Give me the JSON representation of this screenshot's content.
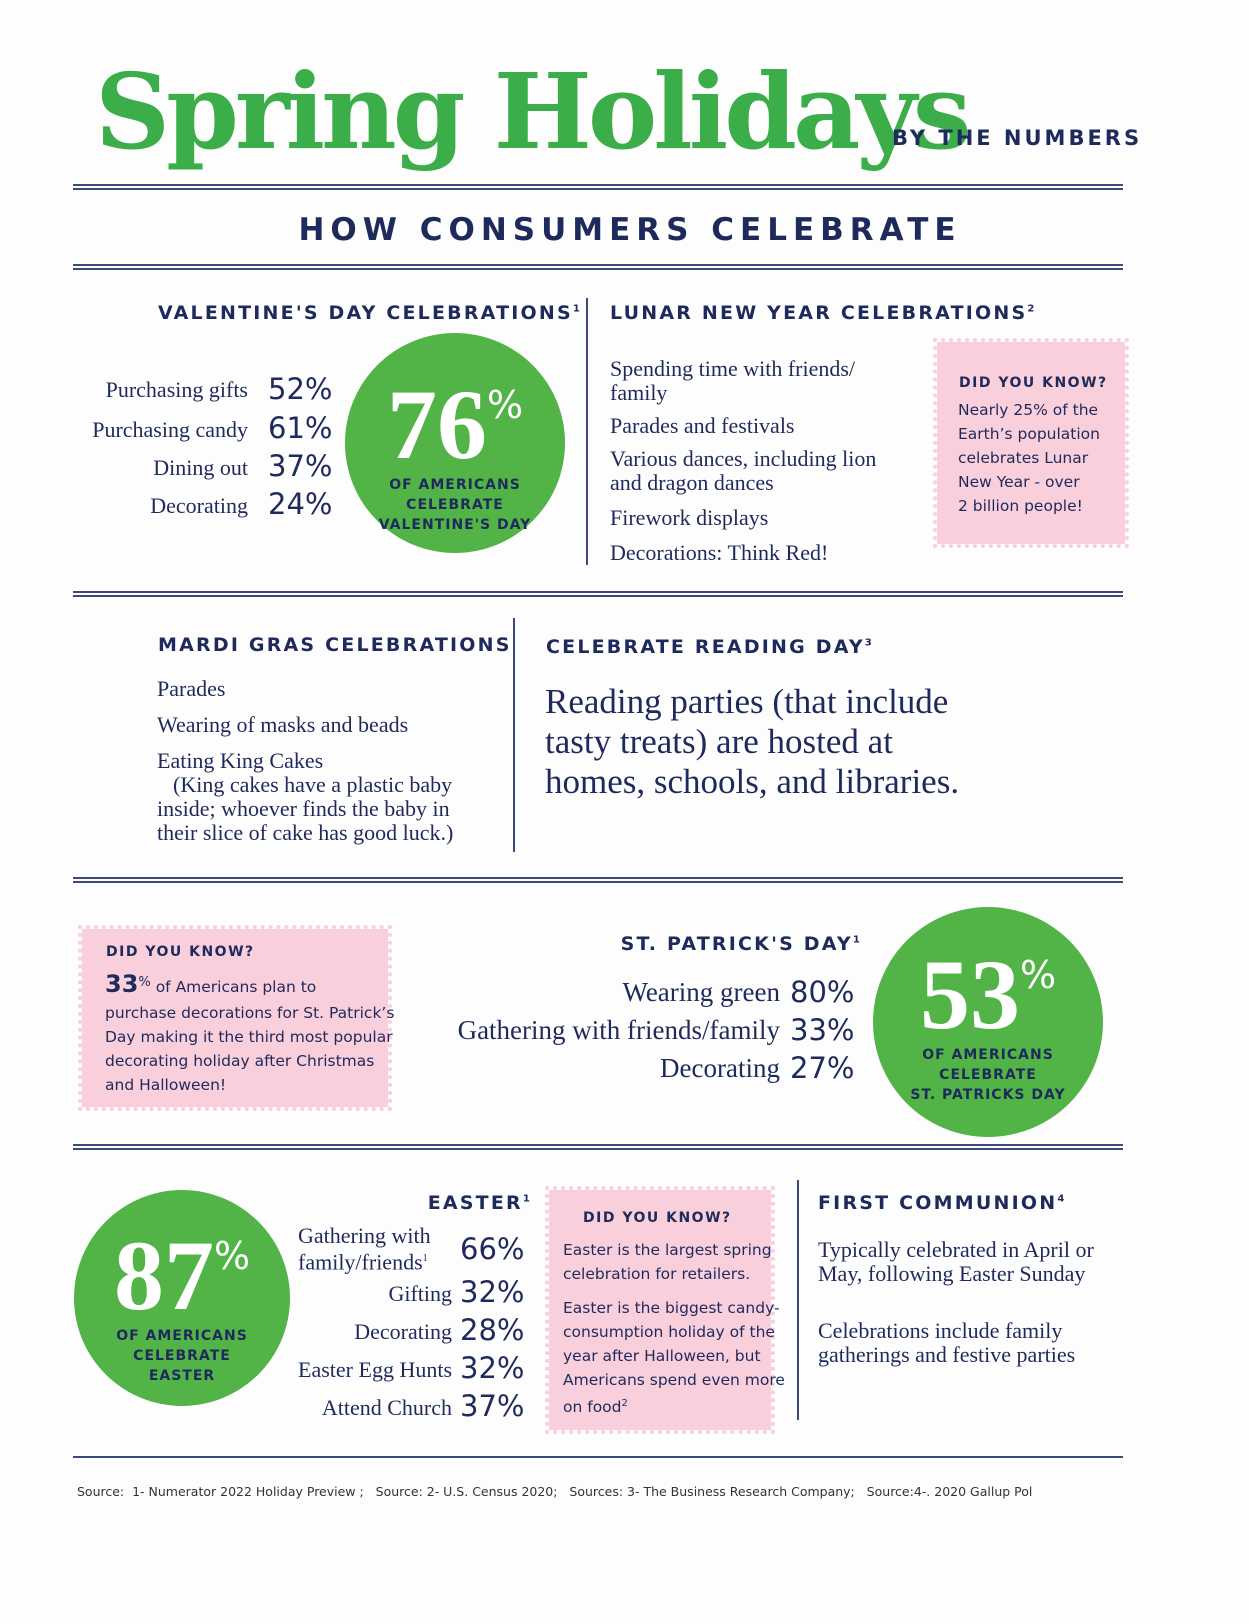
{
  "header": {
    "title": "Spring Holidays",
    "subtitle": "BY THE NUMBERS",
    "section": "HOW CONSUMERS CELEBRATE"
  },
  "valentines": {
    "heading": "VALENTINE'S DAY CELEBRATIONS",
    "note": "1",
    "items": [
      {
        "label": "Purchasing gifts",
        "value": "52%"
      },
      {
        "label": "Purchasing candy",
        "value": "61%"
      },
      {
        "label": "Dining out",
        "value": "37%"
      },
      {
        "label": "Decorating",
        "value": "24%"
      }
    ],
    "circle": {
      "number": "76",
      "unit": "%",
      "caption": [
        "OF AMERICANS",
        "CELEBRATE",
        "VALENTINE'S DAY"
      ]
    }
  },
  "lunar": {
    "heading": "LUNAR NEW YEAR CELEBRATIONS",
    "note": "2",
    "items": [
      [
        "Spending time with friends/",
        "family"
      ],
      [
        "Parades and festivals"
      ],
      [
        "Various dances, including lion",
        "and dragon dances"
      ],
      [
        "Firework displays"
      ],
      [
        "Decorations: Think Red!"
      ]
    ],
    "box": {
      "title": "DID YOU KNOW?",
      "lines": [
        "Nearly 25% of the",
        "Earth’s population",
        "celebrates Lunar",
        "New Year - over",
        "2 billion people!"
      ]
    }
  },
  "mardi_gras": {
    "heading": "MARDI GRAS CELEBRATIONS",
    "items": [
      "Parades",
      "Wearing of masks and beads",
      "Eating King Cakes"
    ],
    "note_lines": [
      "(King cakes have a plastic baby",
      "inside; whoever finds the baby in",
      "their slice of cake has good luck.)"
    ]
  },
  "reading": {
    "heading": "CELEBRATE READING DAY",
    "note": "3",
    "lines": [
      "Reading parties (that include",
      "tasty treats) are hosted at",
      "homes, schools, and libraries."
    ]
  },
  "st_patricks": {
    "heading": "ST. PATRICK'S DAY",
    "note": "1",
    "box": {
      "title": "DID YOU KNOW?",
      "lead": "33",
      "lead_unit": "%",
      "first_line": "of Americans plan to",
      "lines": [
        "purchase decorations for St. Patrick’s",
        "Day making it the third most popular",
        "decorating holiday after Christmas",
        "and Halloween!"
      ]
    },
    "items": [
      {
        "label": "Wearing green",
        "value": "80%"
      },
      {
        "label": "Gathering with friends/family",
        "value": "33%"
      },
      {
        "label": "Decorating",
        "value": "27%"
      }
    ],
    "circle": {
      "number": "53",
      "unit": "%",
      "caption": [
        "OF AMERICANS",
        "CELEBRATE",
        "ST. PATRICKS DAY"
      ]
    }
  },
  "easter": {
    "heading": "EASTER",
    "note": "1",
    "circle": {
      "number": "87",
      "unit": "%",
      "caption": [
        "OF AMERICANS",
        "CELEBRATE",
        "EASTER"
      ]
    },
    "first_item": {
      "label_lines": [
        "Gathering with",
        "family/friends"
      ],
      "note": "1",
      "value": "66%"
    },
    "items": [
      {
        "label": "Gifting",
        "value": "32%"
      },
      {
        "label": "Decorating",
        "value": "28%"
      },
      {
        "label": "Easter Egg Hunts",
        "value": "32%"
      },
      {
        "label": "Attend Church",
        "value": "37%"
      }
    ],
    "box": {
      "title": "DID YOU KNOW?",
      "para1": [
        "Easter is the largest spring",
        "celebration for retailers."
      ],
      "para2": [
        "Easter is the biggest candy-",
        "consumption holiday of the",
        "year after Halloween, but",
        "Americans spend even more",
        "on food"
      ],
      "para2_note": "2"
    }
  },
  "communion": {
    "heading": "FIRST COMMUNION",
    "note": "4",
    "para1": [
      "Typically celebrated in April or",
      "May, following Easter Sunday"
    ],
    "para2": [
      "Celebrations include family",
      "gatherings and festive parties"
    ]
  },
  "sources": "Source:  1- Numerator 2022 Holiday Preview ;   Source: 2- U.S. Census 2020;   Sources: 3- The Business Research Company;   Source:4-. 2020 Gallup Pol"
}
